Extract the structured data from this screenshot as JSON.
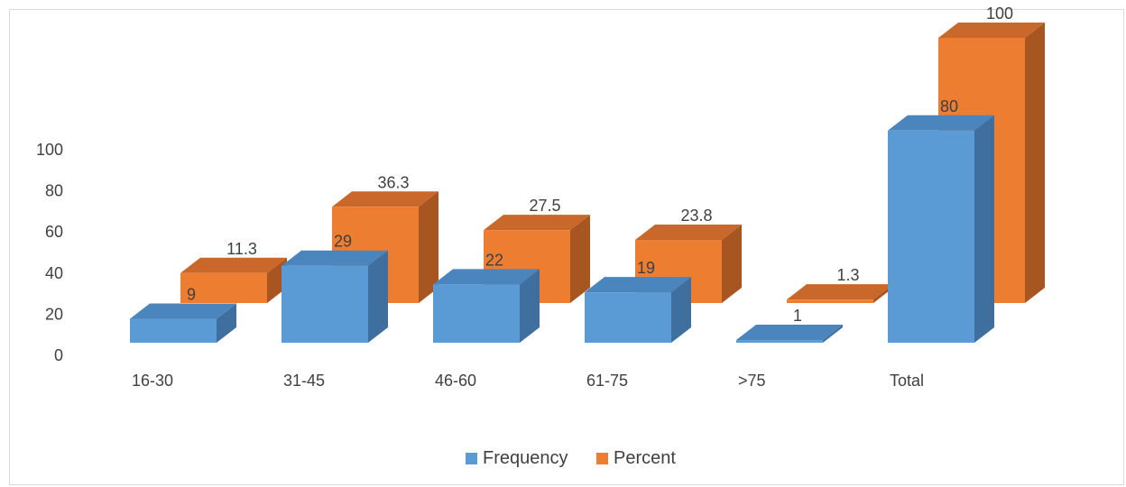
{
  "chart_data": {
    "type": "bar",
    "three_d": true,
    "categories": [
      "16-30",
      "31-45",
      "46-60",
      "61-75",
      ">75",
      "Total"
    ],
    "series": [
      {
        "name": "Frequency",
        "values": [
          9,
          29,
          22,
          19,
          1,
          80
        ]
      },
      {
        "name": "Percent",
        "values": [
          11.3,
          36.3,
          27.5,
          23.8,
          1.3,
          100
        ]
      }
    ],
    "data_labels": {
      "Frequency": [
        "9",
        "29",
        "22",
        "19",
        "1",
        "80"
      ],
      "Percent": [
        "11.3",
        "36.3",
        "27.5",
        "23.8",
        "1.3",
        "100"
      ]
    },
    "y_ticks": [
      "0",
      "20",
      "40",
      "60",
      "80",
      "100"
    ],
    "ylim": [
      0,
      100
    ],
    "legend_position": "bottom",
    "grid": false,
    "colors": {
      "Frequency": {
        "front": "#5b9bd5",
        "top": "#4a85bd",
        "side": "#3e6f9e"
      },
      "Percent": {
        "front": "#ed7d31",
        "top": "#c9682a",
        "side": "#a75521"
      }
    }
  }
}
